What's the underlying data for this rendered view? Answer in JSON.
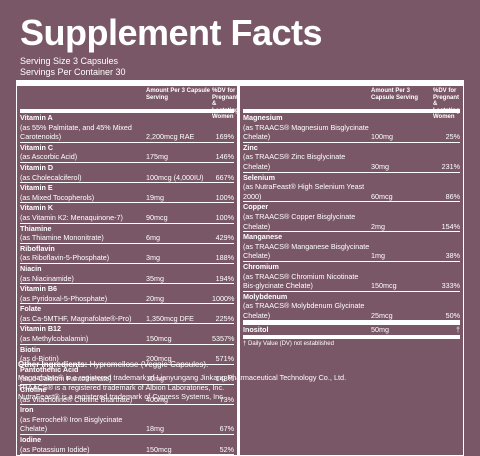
{
  "header": {
    "title": "Supplement Facts",
    "serving_size": "Serving Size 3 Capsules",
    "servings_per_container": "Servings Per Container 30"
  },
  "columns": [
    {
      "amount_header": "Amount Per 3 Capsule Serving",
      "dv_header": "%DV for Pregnant & Lactating Women",
      "rows": [
        {
          "name": "Vitamin A",
          "source": "(as 55% Palmitate, and 45% Mixed Carotenoids)",
          "amount": "2,200mcg RAE",
          "dv": "169%"
        },
        {
          "name": "Vitamin C",
          "source": "(as Ascorbic Acid)",
          "amount": "175mg",
          "dv": "146%"
        },
        {
          "name": "Vitamin D",
          "source": "(as Cholecalciferol)",
          "amount": "100mcg (4,000IU)",
          "dv": "667%"
        },
        {
          "name": "Vitamin E",
          "source": "(as Mixed Tocopherols)",
          "amount": "19mg",
          "dv": "100%"
        },
        {
          "name": "Vitamin K",
          "source": "(as Vitamin K2: Menaquinone-7)",
          "amount": "90mcg",
          "dv": "100%"
        },
        {
          "name": "Thiamine",
          "source": "(as Thiamine Mononitrate)",
          "amount": "6mg",
          "dv": "429%"
        },
        {
          "name": "Riboflavin",
          "source": "(as Riboflavin-5-Phosphate)",
          "amount": "3mg",
          "dv": "188%"
        },
        {
          "name": "Niacin",
          "source": "(as Niacinamide)",
          "amount": "35mg",
          "dv": "194%"
        },
        {
          "name": "Vitamin B6",
          "source": "(as Pyridoxal-5-Phosphate)",
          "amount": "20mg",
          "dv": "1000%"
        },
        {
          "name": "Folate",
          "source": "(as Ca-5MTHF, Magnafolate®-Pro)",
          "amount": "1,350mcg DFE",
          "dv": "225%"
        },
        {
          "name": "Vitamin B12",
          "source": "(as Methylcobalamin)",
          "amount": "150mcg",
          "dv": "5357%"
        },
        {
          "name": "Biotin",
          "source": "(as d-Biotin)",
          "amount": "200mcg",
          "dv": "571%"
        },
        {
          "name": "Pantothenic Acid",
          "source": "(as d-Calcium Pantothenate)",
          "amount": "10mg",
          "dv": "143%"
        },
        {
          "name": "Choline",
          "source": "(as Vitacholine® Choline Bitartrate)",
          "amount": "400mg",
          "dv": "73%"
        },
        {
          "name": "Iron",
          "source": "(as Ferrochel® Iron Bisglycinate Chelate)",
          "amount": "18mg",
          "dv": "67%"
        },
        {
          "name": "Iodine",
          "source": "(as Potassium Iodide)",
          "amount": "150mcg",
          "dv": "52%"
        }
      ]
    },
    {
      "amount_header": "Amount Per 3 Capsule Serving",
      "dv_header": "%DV for Pregnant & Lactating Women",
      "rows": [
        {
          "name": "Magnesium",
          "source": "(as TRAACS® Magnesium Bisglycinate Chelate)",
          "amount": "100mg",
          "dv": "25%"
        },
        {
          "name": "Zinc",
          "source": "(as TRAACS® Zinc Bisglycinate Chelate)",
          "amount": "30mg",
          "dv": "231%"
        },
        {
          "name": "Selenium",
          "source": "(as NutraFeast® High Selenium Yeast 2000)",
          "amount": "60mcg",
          "dv": "86%"
        },
        {
          "name": "Copper",
          "source": "(as TRAACS® Copper Bisglycinate Chelate)",
          "amount": "2mg",
          "dv": "154%"
        },
        {
          "name": "Manganese",
          "source": "(as TRAACS® Manganese Bisglycinate Chelate)",
          "amount": "1mg",
          "dv": "38%"
        },
        {
          "name": "Chromium",
          "source": "(as TRAACS® Chromium Nicotinate Bis-glycinate Chelate)",
          "amount": "150mcg",
          "dv": "333%"
        },
        {
          "name": "Molybdenum",
          "source": "(as TRAACS® Molybdenum Glycinate Chelate)",
          "amount": "25mcg",
          "dv": "50%"
        },
        {
          "name": "Inositol",
          "amount": "50mg",
          "dv": "†"
        }
      ],
      "footnote": "† Daily Value (DV) not established"
    }
  ],
  "other_ingredients": {
    "label": "Other Ingredients:",
    "text": "Hypromellose (Veggie Capsules)."
  },
  "trademarks": [
    "Magnafolate® is a registered trademark of Lianyungang Jinkang Pharmaceutical Technology Co., Ltd.",
    "TRAACS® is a registered trademark of Albion Laboratories, Inc.",
    "NutraFeast® is a registered trademark of Cypress Systems, Inc."
  ]
}
